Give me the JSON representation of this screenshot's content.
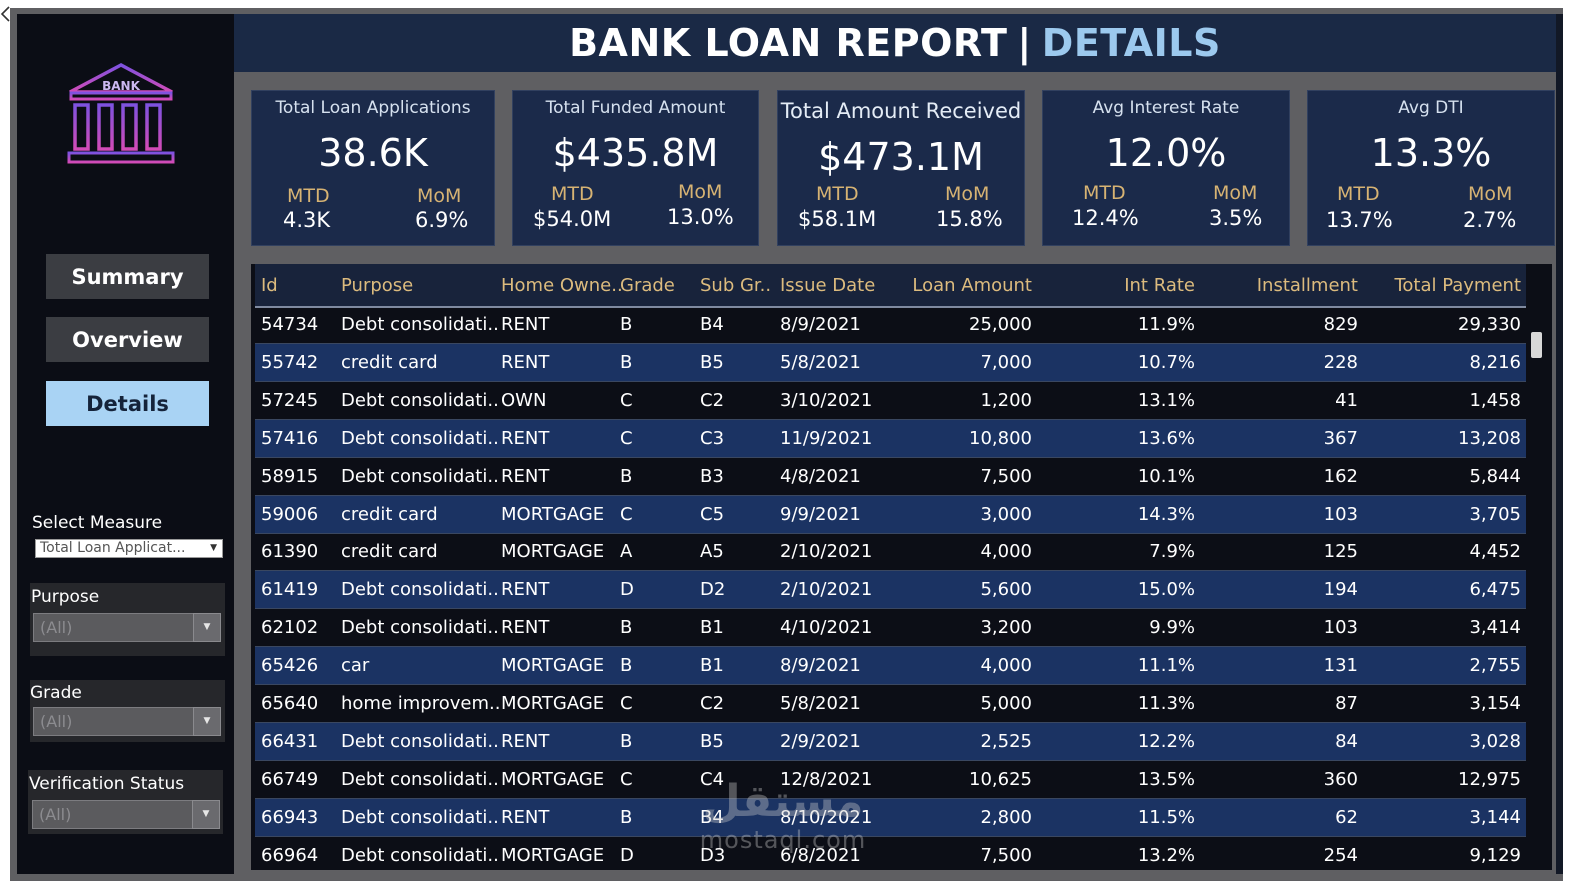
{
  "header": {
    "title_main": "BANK LOAN REPORT",
    "title_sep": "|",
    "title_accent": "DETAILS"
  },
  "logo": {
    "text": "BANK",
    "icon": "bank-building-icon"
  },
  "nav": {
    "summary": "Summary",
    "overview": "Overview",
    "details": "Details",
    "active": "Details"
  },
  "filters": {
    "measure_label": "Select Measure",
    "measure_value": "Total Loan Applicat...",
    "purpose_label": "Purpose",
    "purpose_value": "(All)",
    "grade_label": "Grade",
    "grade_value": "(All)",
    "verification_label": "Verification Status",
    "verification_value": "(All)"
  },
  "kpis": [
    {
      "title": "Total Loan Applications",
      "value": "38.6K",
      "mtd_label": "MTD",
      "mtd": "4.3K",
      "mom_label": "MoM",
      "mom": "6.9%"
    },
    {
      "title": "Total Funded Amount",
      "value": "$435.8M",
      "mtd_label": "MTD",
      "mtd": "$54.0M",
      "mom_label": "MoM",
      "mom": "13.0%"
    },
    {
      "title": "Total Amount Received",
      "value": "$473.1M",
      "mtd_label": "MTD",
      "mtd": "$58.1M",
      "mom_label": "MoM",
      "mom": "15.8%"
    },
    {
      "title": "Avg Interest Rate",
      "value": "12.0%",
      "mtd_label": "MTD",
      "mtd": "12.4%",
      "mom_label": "MoM",
      "mom": "3.5%"
    },
    {
      "title": "Avg DTI",
      "value": "13.3%",
      "mtd_label": "MTD",
      "mtd": "13.7%",
      "mom_label": "MoM",
      "mom": "2.7%"
    }
  ],
  "table": {
    "columns": [
      "Id",
      "Purpose",
      "Home Owne..",
      "Grade",
      "Sub Gr..",
      "Issue Date",
      "Loan Amount",
      "Int Rate",
      "Installment",
      "Total Payment"
    ],
    "rows": [
      [
        "54734",
        "Debt consolidati..",
        "RENT",
        "B",
        "B4",
        "8/9/2021",
        "25,000",
        "11.9%",
        "829",
        "29,330"
      ],
      [
        "55742",
        "credit card",
        "RENT",
        "B",
        "B5",
        "5/8/2021",
        "7,000",
        "10.7%",
        "228",
        "8,216"
      ],
      [
        "57245",
        "Debt consolidati..",
        "OWN",
        "C",
        "C2",
        "3/10/2021",
        "1,200",
        "13.1%",
        "41",
        "1,458"
      ],
      [
        "57416",
        "Debt consolidati..",
        "RENT",
        "C",
        "C3",
        "11/9/2021",
        "10,800",
        "13.6%",
        "367",
        "13,208"
      ],
      [
        "58915",
        "Debt consolidati..",
        "RENT",
        "B",
        "B3",
        "4/8/2021",
        "7,500",
        "10.1%",
        "162",
        "5,844"
      ],
      [
        "59006",
        "credit card",
        "MORTGAGE",
        "C",
        "C5",
        "9/9/2021",
        "3,000",
        "14.3%",
        "103",
        "3,705"
      ],
      [
        "61390",
        "credit card",
        "MORTGAGE",
        "A",
        "A5",
        "2/10/2021",
        "4,000",
        "7.9%",
        "125",
        "4,452"
      ],
      [
        "61419",
        "Debt consolidati..",
        "RENT",
        "D",
        "D2",
        "2/10/2021",
        "5,600",
        "15.0%",
        "194",
        "6,475"
      ],
      [
        "62102",
        "Debt consolidati..",
        "RENT",
        "B",
        "B1",
        "4/10/2021",
        "3,200",
        "9.9%",
        "103",
        "3,414"
      ],
      [
        "65426",
        "car",
        "MORTGAGE",
        "B",
        "B1",
        "8/9/2021",
        "4,000",
        "11.1%",
        "131",
        "2,755"
      ],
      [
        "65640",
        "home improvem..",
        "MORTGAGE",
        "C",
        "C2",
        "5/8/2021",
        "5,000",
        "11.3%",
        "87",
        "3,154"
      ],
      [
        "66431",
        "Debt consolidati..",
        "RENT",
        "B",
        "B5",
        "2/9/2021",
        "2,525",
        "12.2%",
        "84",
        "3,028"
      ],
      [
        "66749",
        "Debt consolidati..",
        "MORTGAGE",
        "C",
        "C4",
        "12/8/2021",
        "10,625",
        "13.5%",
        "360",
        "12,975"
      ],
      [
        "66943",
        "Debt consolidati..",
        "RENT",
        "B",
        "B4",
        "8/10/2021",
        "2,800",
        "11.5%",
        "62",
        "3,144"
      ],
      [
        "66964",
        "Debt consolidati..",
        "MORTGAGE",
        "D",
        "D3",
        "6/8/2021",
        "7,500",
        "13.2%",
        "254",
        "9,129"
      ]
    ]
  },
  "watermark": {
    "arabic": "مستقل",
    "latin": "mostaql.com"
  },
  "colors": {
    "card_bg": "#1b2a4a",
    "row_alt": "#1b3363",
    "header_accent": "#9cc9ee",
    "column_header": "#dcbb7e",
    "active_nav": "#a9d3f4"
  }
}
